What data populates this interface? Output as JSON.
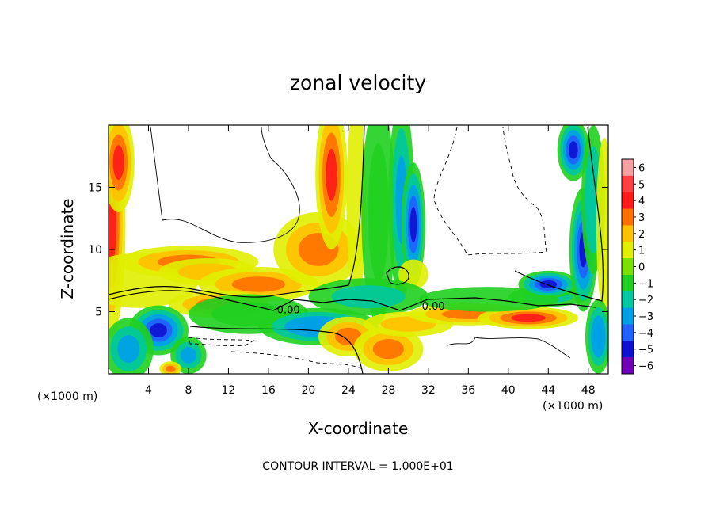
{
  "chart_data": {
    "type": "heatmap",
    "title": "zonal velocity",
    "xlabel": "X-coordinate",
    "ylabel": "Z-coordinate",
    "x_unit_left": "(×1000 m)",
    "x_unit_right": "(×1000 m)",
    "footer": "CONTOUR INTERVAL = 1.000E+01",
    "xlim": [
      0,
      50
    ],
    "ylim": [
      0,
      20
    ],
    "x_ticks": [
      4,
      8,
      12,
      16,
      20,
      24,
      28,
      32,
      36,
      40,
      44,
      48
    ],
    "y_ticks": [
      5,
      10,
      15
    ],
    "colorbar": {
      "values": [
        6,
        5,
        4,
        3,
        2,
        1,
        0,
        -1,
        -2,
        -3,
        -4,
        -5,
        -6
      ],
      "labels": [
        "6",
        "5",
        "4",
        "3",
        "2",
        "1",
        "0",
        "−1",
        "−2",
        "−3",
        "−4",
        "−5",
        "−6"
      ],
      "colors": [
        "#f4a0a0",
        "#ff4040",
        "#ff1a1a",
        "#ff7000",
        "#ffc000",
        "#e0ee00",
        "#7ae000",
        "#20d020",
        "#00c8a0",
        "#00a0e8",
        "#2060ff",
        "#1010d0",
        "#7000b8"
      ]
    },
    "contour_labels": [
      {
        "text": "0.00",
        "x": 18.0,
        "y": 5.0
      },
      {
        "text": "0.00",
        "x": 32.5,
        "y": 5.3
      }
    ],
    "fields": [
      {
        "x": 0.3,
        "y": 12,
        "rx": 1.4,
        "ry": 9,
        "v": 3.5
      },
      {
        "x": 1.0,
        "y": 17,
        "rx": 1.6,
        "ry": 4,
        "v": 4.2
      },
      {
        "x": 3,
        "y": 7.5,
        "rx": 6,
        "ry": 2.2,
        "v": 1.4
      },
      {
        "x": 8,
        "y": 9,
        "rx": 7,
        "ry": 1.3,
        "v": 3.2
      },
      {
        "x": 10,
        "y": 8.2,
        "rx": 5,
        "ry": 1.1,
        "v": 1.5
      },
      {
        "x": 15,
        "y": 7.2,
        "rx": 6,
        "ry": 1.4,
        "v": 2.6
      },
      {
        "x": 11,
        "y": 5.6,
        "rx": 5,
        "ry": 1.1,
        "v": 3.4
      },
      {
        "x": 21,
        "y": 10,
        "rx": 4.5,
        "ry": 3,
        "v": 3.2
      },
      {
        "x": 22.3,
        "y": 16,
        "rx": 1.6,
        "ry": 6,
        "v": 3.8
      },
      {
        "x": 24.8,
        "y": 14,
        "rx": 1.0,
        "ry": 8,
        "v": 1.2
      },
      {
        "x": 27,
        "y": 13,
        "rx": 1.7,
        "ry": 9,
        "v": -1.5
      },
      {
        "x": 29.3,
        "y": 14,
        "rx": 1.3,
        "ry": 8,
        "v": -3.2
      },
      {
        "x": 30.5,
        "y": 12,
        "rx": 1.2,
        "ry": 5,
        "v": -4.6
      },
      {
        "x": 30.5,
        "y": 8.0,
        "rx": 1.5,
        "ry": 1.2,
        "v": 0.8
      },
      {
        "x": 5,
        "y": 3.5,
        "rx": 3,
        "ry": 2.0,
        "v": -4.6
      },
      {
        "x": 2,
        "y": 2,
        "rx": 2.5,
        "ry": 2.5,
        "v": -2.8
      },
      {
        "x": 8,
        "y": 1.5,
        "rx": 1.8,
        "ry": 1.5,
        "v": -3.0
      },
      {
        "x": 6.2,
        "y": 0.4,
        "rx": 1.1,
        "ry": 0.6,
        "v": 2.6
      },
      {
        "x": 14,
        "y": 4.8,
        "rx": 6,
        "ry": 1.6,
        "v": -1.5
      },
      {
        "x": 21,
        "y": 3.8,
        "rx": 6,
        "ry": 1.5,
        "v": -3.5
      },
      {
        "x": 26,
        "y": 6.2,
        "rx": 6,
        "ry": 1.5,
        "v": -2.4
      },
      {
        "x": 24,
        "y": 3,
        "rx": 3,
        "ry": 1.6,
        "v": 3.2
      },
      {
        "x": 28,
        "y": 2.0,
        "rx": 3.5,
        "ry": 1.8,
        "v": 2.6
      },
      {
        "x": 30,
        "y": 4,
        "rx": 4.5,
        "ry": 1.0,
        "v": 2.4
      },
      {
        "x": 36,
        "y": 4.8,
        "rx": 6,
        "ry": 0.9,
        "v": 3.4
      },
      {
        "x": 42,
        "y": 4.5,
        "rx": 5,
        "ry": 0.9,
        "v": 3.6
      },
      {
        "x": 44,
        "y": 6.2,
        "rx": 4,
        "ry": 0.8,
        "v": -1.6
      },
      {
        "x": 38,
        "y": 6.0,
        "rx": 7,
        "ry": 1.0,
        "v": -0.6
      },
      {
        "x": 44,
        "y": 7.2,
        "rx": 3,
        "ry": 1.1,
        "v": -4.6
      },
      {
        "x": 47.5,
        "y": 10,
        "rx": 1.4,
        "ry": 5,
        "v": -5.0
      },
      {
        "x": 46.5,
        "y": 18,
        "rx": 1.6,
        "ry": 2.5,
        "v": -5.2
      },
      {
        "x": 48.5,
        "y": 14,
        "rx": 1.2,
        "ry": 6,
        "v": -2.5
      },
      {
        "x": 49.6,
        "y": 12,
        "rx": 0.8,
        "ry": 7,
        "v": 1.2
      },
      {
        "x": 49,
        "y": 3,
        "rx": 1.3,
        "ry": 3,
        "v": -3.5
      }
    ]
  }
}
